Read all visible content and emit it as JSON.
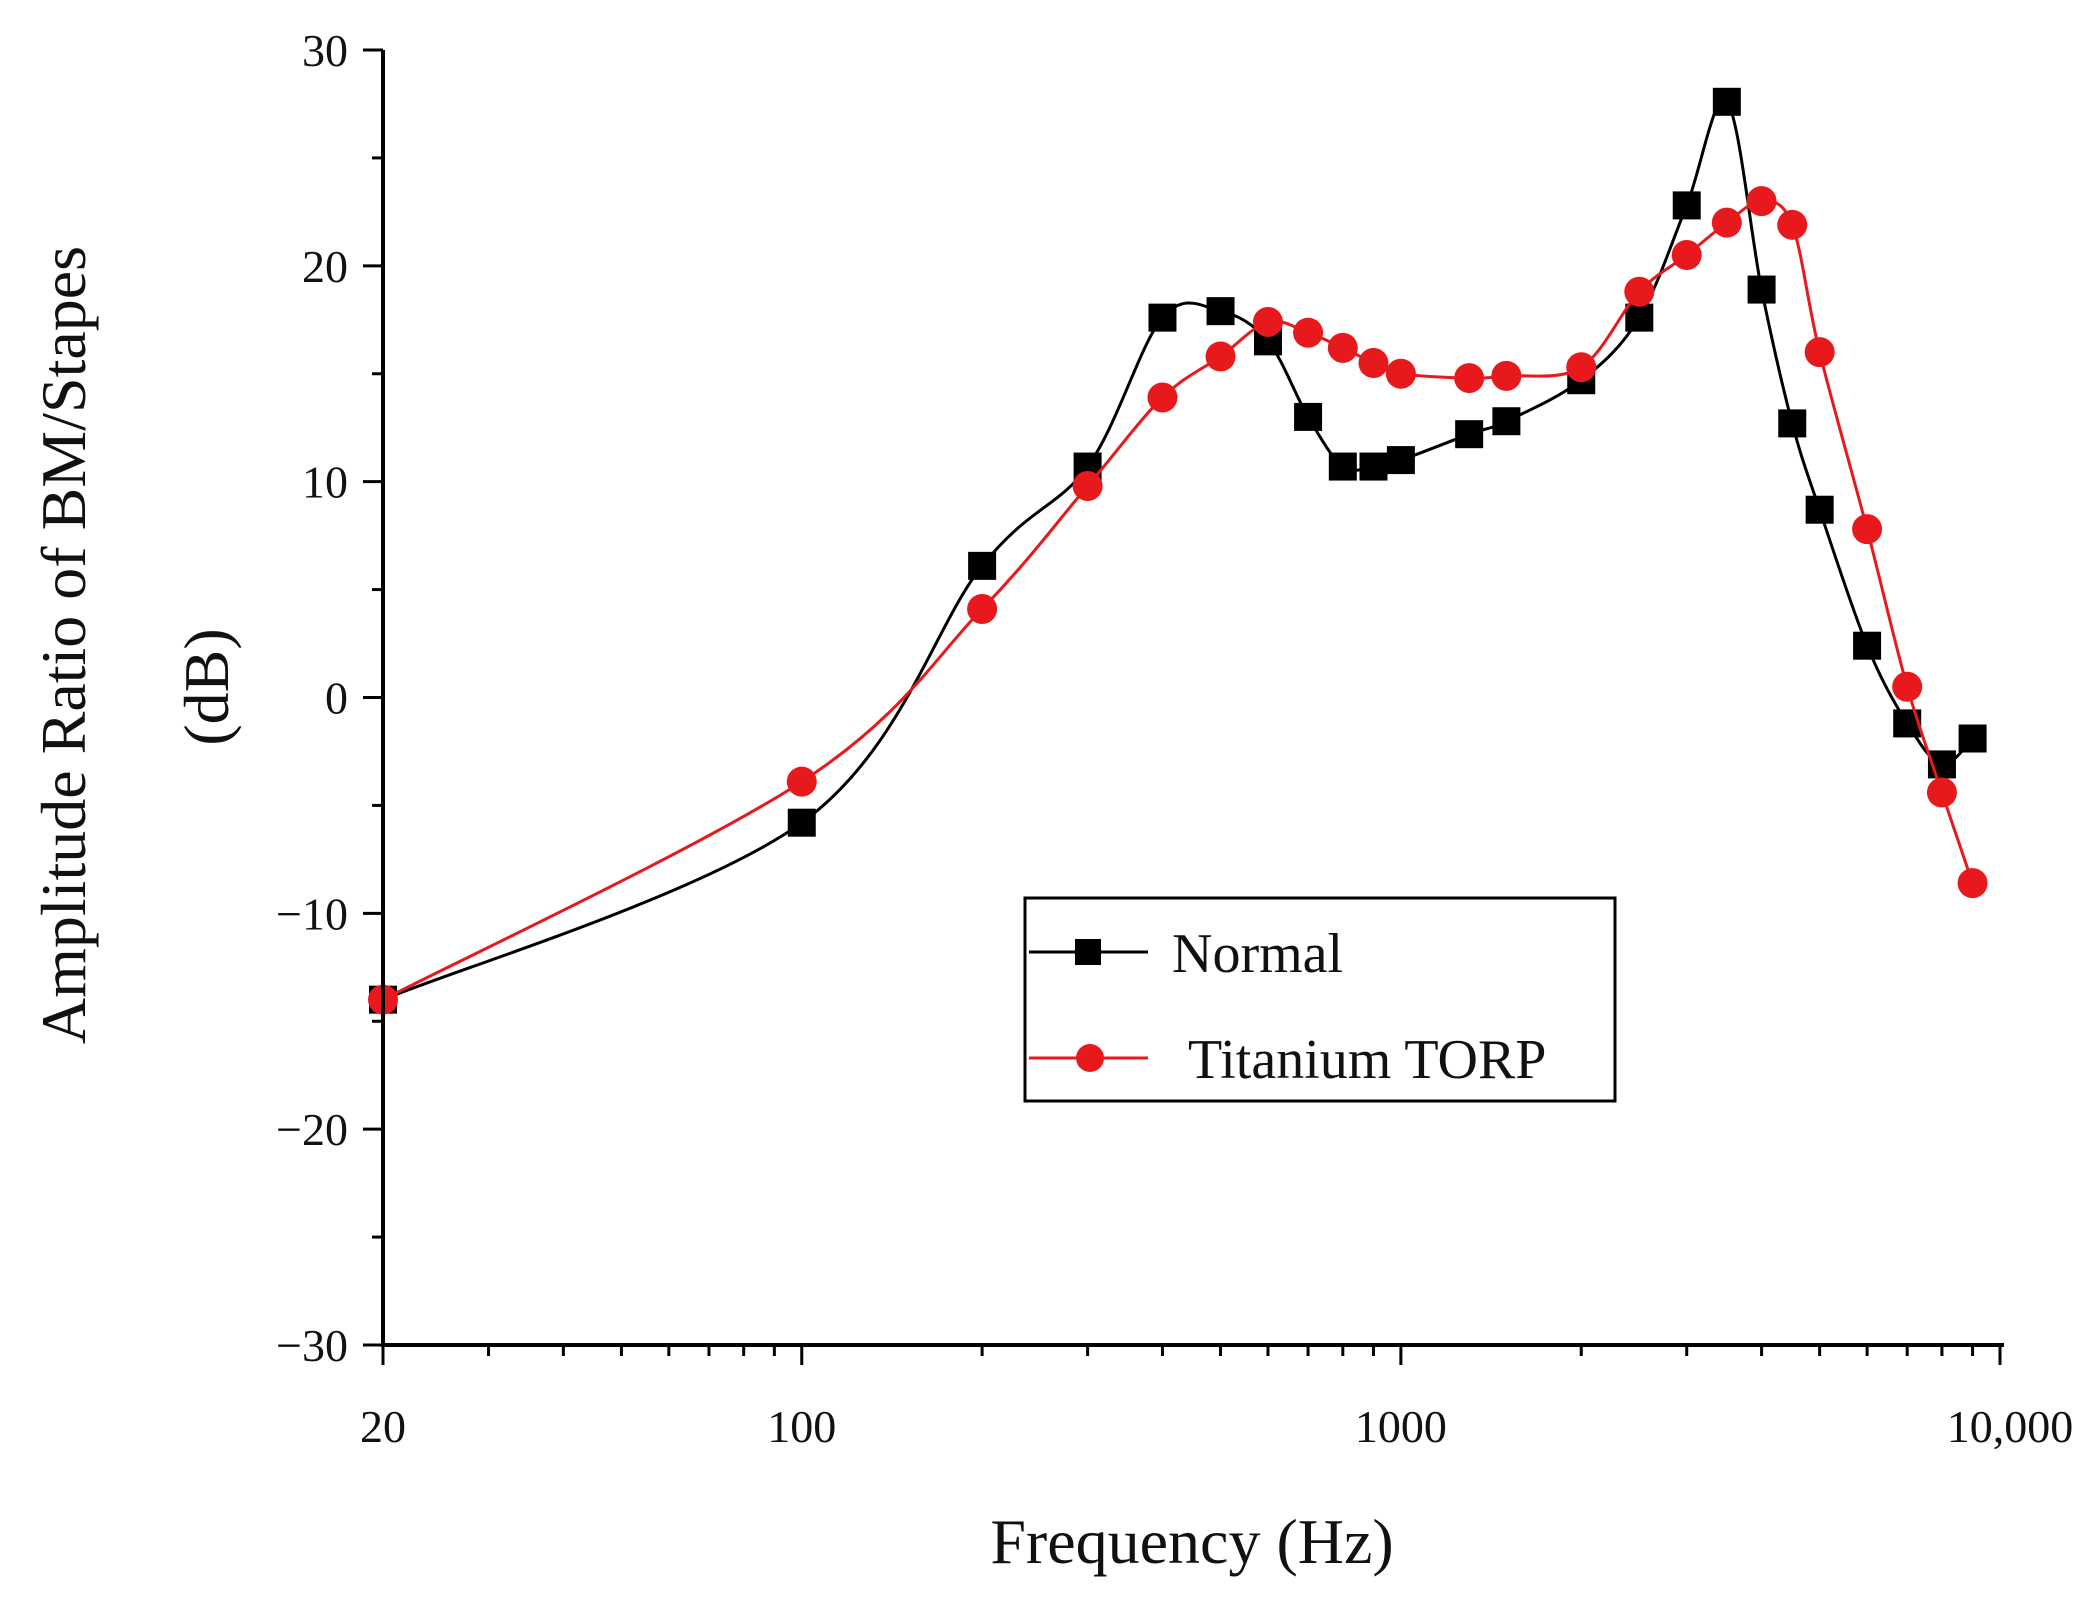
{
  "chart_data": {
    "type": "line",
    "title": "",
    "xlabel": "Frequency (Hz)",
    "ylabel_line1": "Amplitude Ratio of BM/Stapes",
    "ylabel_line2": "(dB)",
    "x_scale": "log",
    "xlim": [
      20,
      10000
    ],
    "ylim": [
      -30,
      30
    ],
    "x_ticks": [
      {
        "value": 20,
        "label": "20"
      },
      {
        "value": 100,
        "label": "100"
      },
      {
        "value": 1000,
        "label": "1000"
      },
      {
        "value": 10000,
        "label": "10,000"
      }
    ],
    "y_ticks": [
      {
        "value": 30,
        "label": "30"
      },
      {
        "value": 20,
        "label": "20"
      },
      {
        "value": 10,
        "label": "10"
      },
      {
        "value": 0,
        "label": "0"
      },
      {
        "value": -10,
        "label": "−10"
      },
      {
        "value": -20,
        "label": "−20"
      },
      {
        "value": -30,
        "label": "−30"
      }
    ],
    "legend_position": "center-right",
    "series": [
      {
        "name": "Normal",
        "color": "#000000",
        "marker": "square",
        "x": [
          20,
          100,
          200,
          300,
          400,
          500,
          600,
          700,
          800,
          900,
          1000,
          1300,
          1500,
          2000,
          2500,
          3000,
          3500,
          4000,
          4500,
          5000,
          6000,
          7000,
          8000,
          9000
        ],
        "y": [
          -14,
          -5.8,
          6.1,
          10.7,
          17.6,
          17.9,
          16.5,
          13.0,
          10.7,
          10.7,
          11.0,
          12.2,
          12.8,
          14.7,
          17.6,
          22.8,
          27.6,
          18.9,
          12.7,
          8.7,
          2.4,
          -1.2,
          -3.1,
          -1.9
        ]
      },
      {
        "name": "Titanium TORP",
        "color": "#e8191d",
        "marker": "circle",
        "x": [
          20,
          100,
          200,
          300,
          400,
          500,
          600,
          700,
          800,
          900,
          1000,
          1300,
          1500,
          2000,
          2500,
          3000,
          3500,
          4000,
          4500,
          5000,
          6000,
          7000,
          8000,
          9000
        ],
        "y": [
          -14,
          -3.9,
          4.1,
          9.8,
          13.9,
          15.8,
          17.4,
          16.9,
          16.2,
          15.5,
          15.0,
          14.8,
          14.9,
          15.3,
          18.8,
          20.5,
          22.0,
          23.0,
          21.9,
          16.0,
          7.8,
          0.5,
          -4.4,
          -8.6
        ]
      }
    ]
  }
}
